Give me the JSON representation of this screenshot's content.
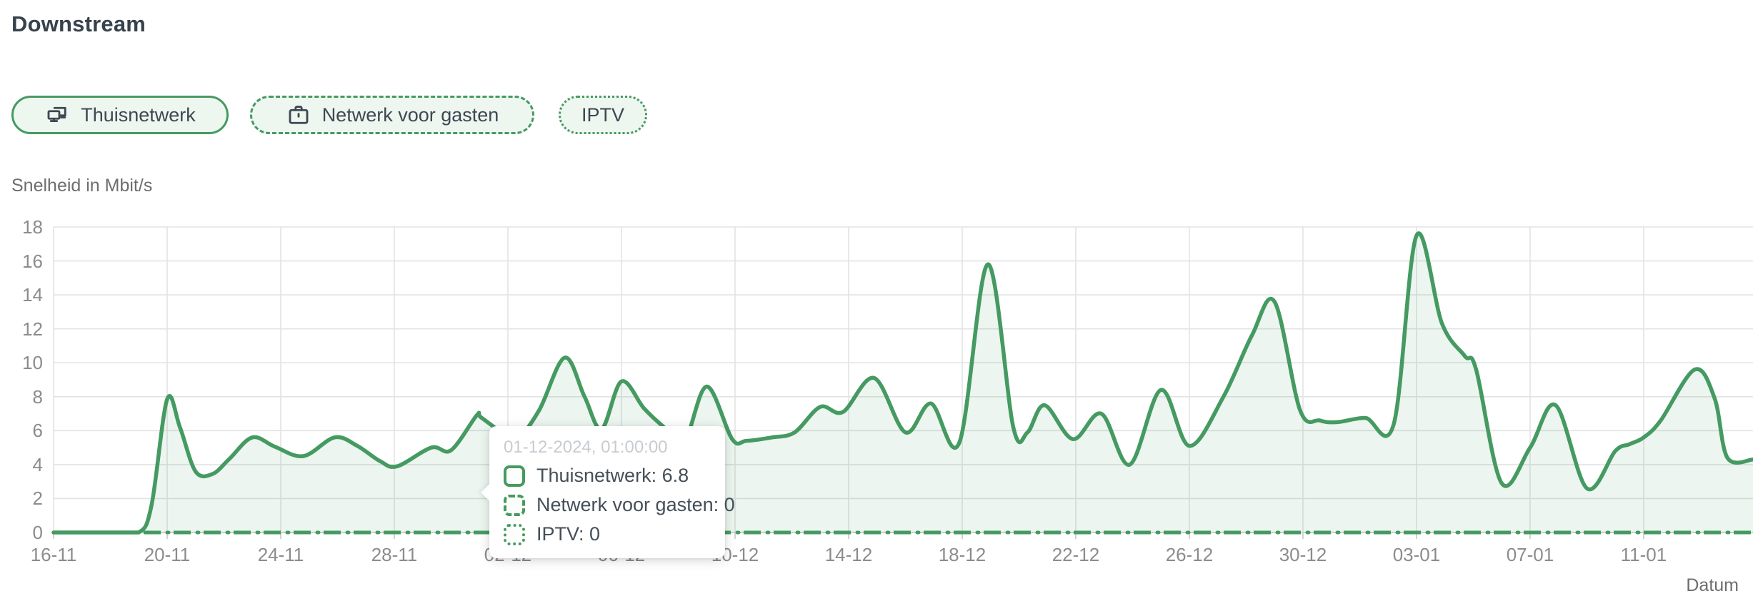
{
  "page": {
    "title": "Downstream"
  },
  "filters": [
    {
      "id": "thuisnetwerk",
      "label": "Thuisnetwerk",
      "icon": "home-network-icon",
      "border_style": "solid",
      "active": true
    },
    {
      "id": "netwerk-voor-gasten",
      "label": "Netwerk voor gasten",
      "icon": "briefcase-icon",
      "border_style": "dashed",
      "active": false
    },
    {
      "id": "iptv",
      "label": "IPTV",
      "icon": null,
      "border_style": "dotted",
      "active": false
    }
  ],
  "colors": {
    "accent_green": "#459a62",
    "area_fill": "rgba(70,154,98,0.10)",
    "grid": "#e3e3e3",
    "axis": "#d2d2d2",
    "tick_text": "#8c8c8c",
    "label_text": "#6d6d6d",
    "text_dark": "#3d4852",
    "tooltip_muted": "#c7ccd1",
    "button_bg": "#eef6f0"
  },
  "tooltip": {
    "timestamp": "01-12-2024, 01:00:00",
    "rows": [
      {
        "label": "Thuisnetwerk",
        "value": "6.8",
        "marker": "solid"
      },
      {
        "label": "Netwerk voor gasten",
        "value": "0",
        "marker": "dashed"
      },
      {
        "label": "IPTV",
        "value": "0",
        "marker": "dotted"
      }
    ]
  },
  "chart_data": {
    "type": "area",
    "title": "Downstream",
    "ylabel": "Snelheid in Mbit/s",
    "xlabel": "Datum",
    "unit": "Mbit/s",
    "ylim": [
      0,
      18
    ],
    "y_ticks": [
      0,
      2,
      4,
      6,
      8,
      10,
      12,
      14,
      16,
      18
    ],
    "x_span_days": 59.85,
    "x_ticks": [
      {
        "day": 0,
        "label": "16-11"
      },
      {
        "day": 4,
        "label": "20-11"
      },
      {
        "day": 8,
        "label": "24-11"
      },
      {
        "day": 12,
        "label": "28-11"
      },
      {
        "day": 16,
        "label": "02-12"
      },
      {
        "day": 20,
        "label": "06-12"
      },
      {
        "day": 24,
        "label": "10-12"
      },
      {
        "day": 28,
        "label": "14-12"
      },
      {
        "day": 32,
        "label": "18-12"
      },
      {
        "day": 36,
        "label": "22-12"
      },
      {
        "day": 40,
        "label": "26-12"
      },
      {
        "day": 44,
        "label": "30-12"
      },
      {
        "day": 48,
        "label": "03-01"
      },
      {
        "day": 52,
        "label": "07-01"
      },
      {
        "day": 56,
        "label": "11-01"
      }
    ],
    "grid": true,
    "legend_position": "none",
    "series": [
      {
        "name": "Thuisnetwerk",
        "line_style": "solid",
        "points": [
          [
            0,
            0
          ],
          [
            1,
            0
          ],
          [
            2,
            0
          ],
          [
            3,
            0
          ],
          [
            3.45,
            1.6
          ],
          [
            4,
            7.85
          ],
          [
            4.45,
            6.2
          ],
          [
            5,
            3.6
          ],
          [
            5.6,
            3.45
          ],
          [
            6.2,
            4.35
          ],
          [
            7,
            5.6
          ],
          [
            7.8,
            5.05
          ],
          [
            8.8,
            4.5
          ],
          [
            9.9,
            5.6
          ],
          [
            10.7,
            5.1
          ],
          [
            11.5,
            4.2
          ],
          [
            12.1,
            3.9
          ],
          [
            13.3,
            5.0
          ],
          [
            14,
            4.85
          ],
          [
            14.9,
            6.9
          ],
          [
            15.04,
            6.8
          ],
          [
            15.7,
            6.0
          ],
          [
            16.3,
            5.5
          ],
          [
            17.1,
            7.2
          ],
          [
            18,
            10.3
          ],
          [
            18.7,
            8.0
          ],
          [
            19.3,
            6.1
          ],
          [
            20,
            8.9
          ],
          [
            20.8,
            7.3
          ],
          [
            21.5,
            6.2
          ],
          [
            22.2,
            5.3
          ],
          [
            23,
            8.6
          ],
          [
            23.9,
            5.5
          ],
          [
            24.4,
            5.4
          ],
          [
            25.3,
            5.6
          ],
          [
            26.1,
            5.9
          ],
          [
            27,
            7.4
          ],
          [
            27.8,
            7.1
          ],
          [
            28.9,
            9.1
          ],
          [
            30,
            5.9
          ],
          [
            30.9,
            7.6
          ],
          [
            31.9,
            5.3
          ],
          [
            32.9,
            15.8
          ],
          [
            33.8,
            6.2
          ],
          [
            34.3,
            5.9
          ],
          [
            34.9,
            7.5
          ],
          [
            35.9,
            5.5
          ],
          [
            36.9,
            7.0
          ],
          [
            37.9,
            4.0
          ],
          [
            39,
            8.4
          ],
          [
            40,
            5.1
          ],
          [
            41.2,
            8.0
          ],
          [
            42.2,
            11.6
          ],
          [
            43,
            13.6
          ],
          [
            43.9,
            7.2
          ],
          [
            44.6,
            6.6
          ],
          [
            45.2,
            6.5
          ],
          [
            46.2,
            6.75
          ],
          [
            47.2,
            6.4
          ],
          [
            48,
            17.5
          ],
          [
            48.9,
            12.3
          ],
          [
            49.7,
            10.4
          ],
          [
            50.1,
            9.6
          ],
          [
            51,
            2.9
          ],
          [
            52,
            5.0
          ],
          [
            52.9,
            7.5
          ],
          [
            54,
            2.6
          ],
          [
            55,
            4.8
          ],
          [
            55.5,
            5.2
          ],
          [
            56,
            5.6
          ],
          [
            56.6,
            6.6
          ],
          [
            57.8,
            9.6
          ],
          [
            58.5,
            7.9
          ],
          [
            58.95,
            4.4
          ],
          [
            59.85,
            4.3
          ]
        ]
      },
      {
        "name": "Netwerk voor gasten",
        "line_style": "dashed",
        "points": [
          [
            0,
            0
          ],
          [
            59.85,
            0
          ]
        ]
      },
      {
        "name": "IPTV",
        "line_style": "dotted",
        "points": [
          [
            0,
            0
          ],
          [
            59.85,
            0
          ]
        ]
      }
    ]
  }
}
